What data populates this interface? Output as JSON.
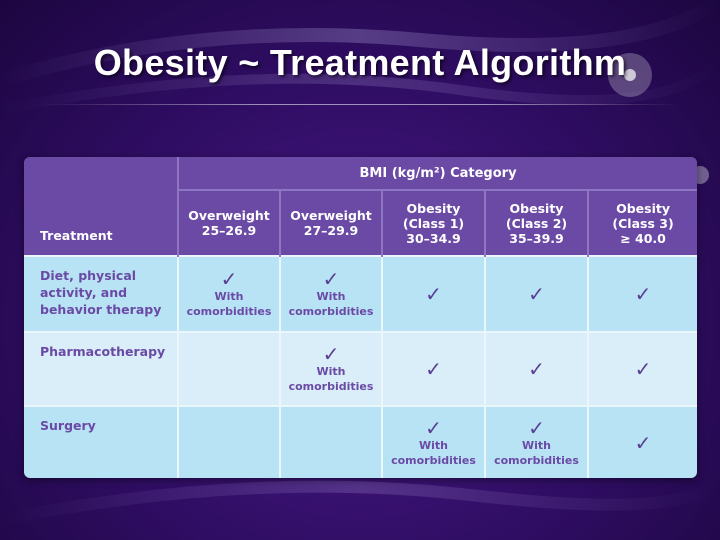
{
  "slide": {
    "title": "Obesity ~ Treatment Algorithm"
  },
  "table": {
    "category_header": "BMI (kg/m²) Category",
    "treatment_header": "Treatment",
    "columns": [
      {
        "line1": "Overweight",
        "line2": "25–26.9"
      },
      {
        "line1": "Overweight",
        "line2": "27–29.9"
      },
      {
        "line1": "Obesity",
        "line2": "(Class 1)",
        "line3": "30–34.9"
      },
      {
        "line1": "Obesity",
        "line2": "(Class 2)",
        "line3": "35–39.9"
      },
      {
        "line1": "Obesity",
        "line2": "(Class 3)",
        "line3": "≥ 40.0"
      }
    ],
    "check_glyph": "✓",
    "comorbidities_line1": "With",
    "comorbidities_line2": "comorbidities",
    "rows": [
      {
        "label_lines": [
          "Diet, physical",
          "activity, and",
          "behavior therapy"
        ]
      },
      {
        "label_lines": [
          "Pharmacotherapy"
        ]
      },
      {
        "label_lines": [
          "Surgery"
        ]
      }
    ]
  },
  "colors": {
    "header_bg": "#6b4aa6",
    "row_dark": "#b7e3f5",
    "row_light": "#d9eef8",
    "text_purple": "#6b4aa6",
    "background": "#2f0d63"
  }
}
